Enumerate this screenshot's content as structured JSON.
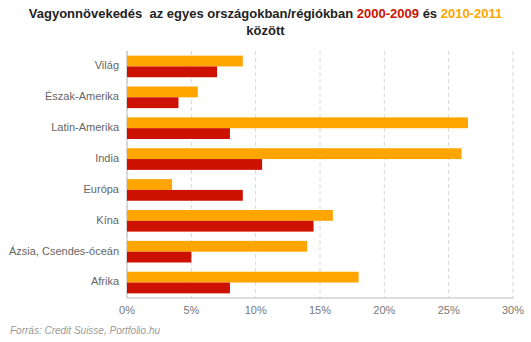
{
  "chart_data": {
    "type": "bar",
    "orientation": "horizontal",
    "title": "Vagyonnövekedés  az egyes országokban/régiókban 2000-2009 és 2010-2011  között",
    "annotations": [
      "Forrás: Credit Suisse, Portfolio.hu"
    ],
    "categories": [
      "Világ",
      "Észak-Amerika",
      "Latin-Amerika",
      "India",
      "Európa",
      "Kína",
      "Ázsia, Csendes-óceán",
      "Afrika"
    ],
    "series": [
      {
        "name": "2010-2011",
        "color": "#FFA500",
        "values": [
          9.0,
          5.5,
          26.5,
          26.0,
          3.5,
          16.0,
          14.0,
          18.0
        ]
      },
      {
        "name": "2000-2009",
        "color": "#CC1100",
        "values": [
          7.0,
          4.0,
          8.0,
          10.5,
          9.0,
          14.5,
          5.0,
          8.0
        ]
      }
    ],
    "xlim": [
      0,
      30
    ],
    "xticks": [
      {
        "value": 0,
        "label": "0%"
      },
      {
        "value": 5,
        "label": "5%"
      },
      {
        "value": 10,
        "label": "10%"
      },
      {
        "value": 15,
        "label": "15%"
      },
      {
        "value": 20,
        "label": "20%"
      },
      {
        "value": 25,
        "label": "25%"
      },
      {
        "value": 30,
        "label": "30%"
      }
    ],
    "grid": true
  }
}
